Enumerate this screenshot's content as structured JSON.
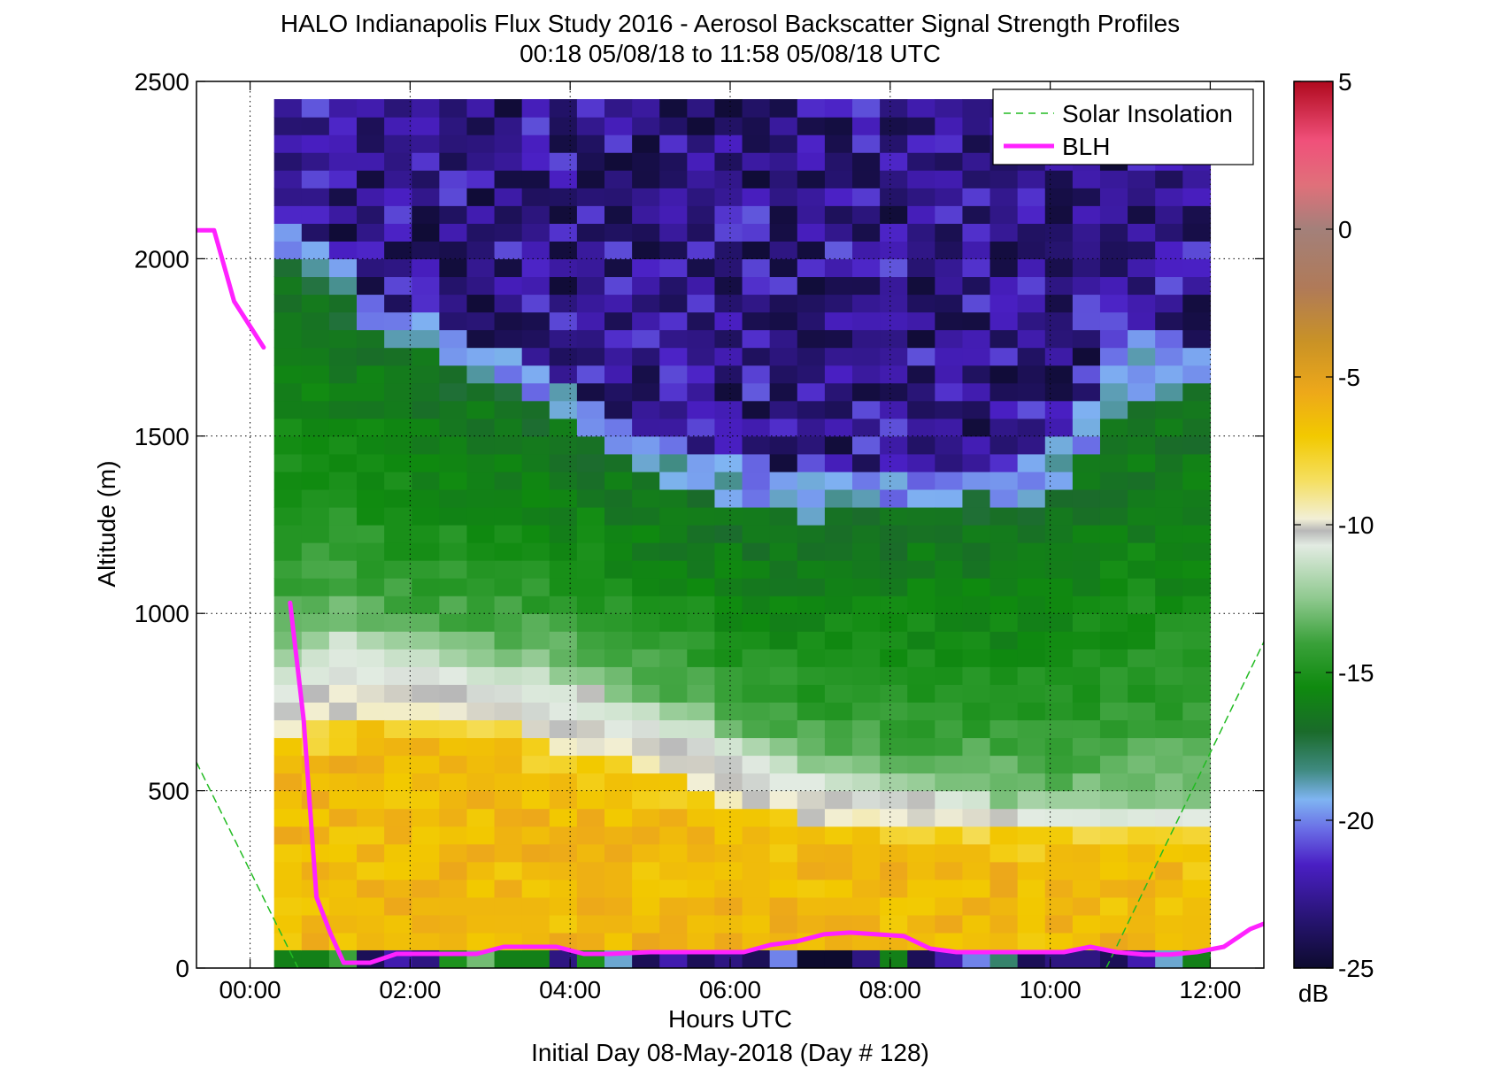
{
  "chart_data": {
    "type": "heatmap",
    "title": "HALO Indianapolis Flux Study 2016 - Aerosol Backscatter Signal Strength Profiles",
    "subtitle": "00:18 05/08/18 to 11:58 05/08/18  UTC",
    "xlabel": "Hours UTC",
    "xlabel2": "Initial Day 08-May-2018 (Day # 128)",
    "ylabel": "Altitude (m)",
    "xlim_hours": [
      -0.67,
      12.67
    ],
    "ylim": [
      0,
      2500
    ],
    "x_ticks": [
      {
        "hour": 0,
        "label": "00:00"
      },
      {
        "hour": 2,
        "label": "02:00"
      },
      {
        "hour": 4,
        "label": "04:00"
      },
      {
        "hour": 6,
        "label": "06:00"
      },
      {
        "hour": 8,
        "label": "08:00"
      },
      {
        "hour": 10,
        "label": "10:00"
      },
      {
        "hour": 12,
        "label": "12:00"
      }
    ],
    "y_ticks": [
      {
        "value": 0,
        "label": "0"
      },
      {
        "value": 500,
        "label": "500"
      },
      {
        "value": 1000,
        "label": "1000"
      },
      {
        "value": 1500,
        "label": "1500"
      },
      {
        "value": 2000,
        "label": "2000"
      },
      {
        "value": 2500,
        "label": "2500"
      }
    ],
    "grid": true,
    "legend_position": "top-right",
    "colorbar": {
      "label": "dB",
      "min": -25,
      "max": 5,
      "ticks": [
        {
          "value": 5,
          "label": "5"
        },
        {
          "value": 0,
          "label": "0"
        },
        {
          "value": -5,
          "label": "-5"
        },
        {
          "value": -10,
          "label": "-10"
        },
        {
          "value": -15,
          "label": "-15"
        },
        {
          "value": -20,
          "label": "-20"
        },
        {
          "value": -25,
          "label": "-25"
        }
      ],
      "stops": [
        {
          "value": -25,
          "color": "#0d0b2e"
        },
        {
          "value": -23.5,
          "color": "#24136b"
        },
        {
          "value": -21.5,
          "color": "#4a1fc4"
        },
        {
          "value": -20.3,
          "color": "#6a6ee6"
        },
        {
          "value": -19.3,
          "color": "#7fb4f2"
        },
        {
          "value": -18.3,
          "color": "#3f8a80"
        },
        {
          "value": -17,
          "color": "#1a6b2a"
        },
        {
          "value": -15.5,
          "color": "#0f8a0f"
        },
        {
          "value": -14,
          "color": "#3aa13a"
        },
        {
          "value": -12.5,
          "color": "#8fc98f"
        },
        {
          "value": -10.7,
          "color": "#e2ebe2"
        },
        {
          "value": -10.2,
          "color": "#b8b8b8"
        },
        {
          "value": -9.8,
          "color": "#f2efd6"
        },
        {
          "value": -8.5,
          "color": "#f5df60"
        },
        {
          "value": -7,
          "color": "#f2c900"
        },
        {
          "value": -5.5,
          "color": "#eda81a"
        },
        {
          "value": -3.8,
          "color": "#c99226"
        },
        {
          "value": -2,
          "color": "#b07a58"
        },
        {
          "value": 0,
          "color": "#a3807a"
        },
        {
          "value": 1.5,
          "color": "#e0707a"
        },
        {
          "value": 3,
          "color": "#f0507a"
        },
        {
          "value": 5,
          "color": "#b00a1e"
        }
      ]
    },
    "heatmap": {
      "t_start_hour": 0.3,
      "t_end_hour": 12,
      "alt_bottom": 50,
      "alt_step": 50,
      "columns": 34,
      "rows": 48,
      "surface_row_db": [
        -16,
        -16,
        -14,
        -24,
        -22,
        -23,
        -15,
        -13,
        -16,
        -16,
        -23,
        -15,
        -19,
        -24,
        -22,
        -24,
        -23,
        -24,
        -20,
        -25,
        -25,
        -23,
        -16,
        -24,
        -22,
        -20,
        -18,
        -24,
        -23,
        -23,
        -24,
        -22,
        -19,
        -16
      ],
      "profile_breakpoints": [
        {
          "hour": 0.3,
          "yellow_top": 640,
          "white_top": 800,
          "green_top": 2000,
          "transition_top": 2100
        },
        {
          "hour": 1.0,
          "yellow_top": 700,
          "white_top": 950,
          "green_top": 1900,
          "transition_top": 2000
        },
        {
          "hour": 2.0,
          "yellow_top": 720,
          "white_top": 880,
          "green_top": 1750,
          "transition_top": 1850
        },
        {
          "hour": 3.0,
          "yellow_top": 700,
          "white_top": 860,
          "green_top": 1650,
          "transition_top": 1750
        },
        {
          "hour": 4.0,
          "yellow_top": 600,
          "white_top": 820,
          "green_top": 1550,
          "transition_top": 1650
        },
        {
          "hour": 5.0,
          "yellow_top": 560,
          "white_top": 740,
          "green_top": 1380,
          "transition_top": 1500
        },
        {
          "hour": 6.0,
          "yellow_top": 470,
          "white_top": 650,
          "green_top": 1300,
          "transition_top": 1460
        },
        {
          "hour": 7.0,
          "yellow_top": 420,
          "white_top": 560,
          "green_top": 1270,
          "transition_top": 1400
        },
        {
          "hour": 8.0,
          "yellow_top": 420,
          "white_top": 520,
          "green_top": 1300,
          "transition_top": 1400
        },
        {
          "hour": 9.0,
          "yellow_top": 400,
          "white_top": 480,
          "green_top": 1330,
          "transition_top": 1400
        },
        {
          "hour": 10.0,
          "yellow_top": 380,
          "white_top": 450,
          "green_top": 1300,
          "transition_top": 1450
        },
        {
          "hour": 11.0,
          "yellow_top": 380,
          "white_top": 450,
          "green_top": 1600,
          "transition_top": 1800
        },
        {
          "hour": 12.0,
          "yellow_top": 380,
          "white_top": 450,
          "green_top": 1650,
          "transition_top": 1750
        }
      ]
    },
    "series": [
      {
        "name": "Solar Insolation",
        "style": "dashed",
        "color": "#22bb22",
        "segments": [
          [
            [
              -0.67,
              580
            ],
            [
              0.6,
              0
            ]
          ],
          [
            [
              10.7,
              0
            ],
            [
              12.67,
              920
            ]
          ]
        ]
      },
      {
        "name": "BLH",
        "style": "solid",
        "color": "#ff22ff",
        "segments": [
          [
            [
              -0.67,
              2080
            ],
            [
              -0.45,
              2080
            ],
            [
              -0.2,
              1880
            ],
            [
              0.17,
              1750
            ]
          ],
          [
            [
              0.5,
              1030
            ],
            [
              0.67,
              700
            ],
            [
              0.83,
              200
            ],
            [
              1.0,
              100
            ],
            [
              1.17,
              15
            ],
            [
              1.5,
              15
            ],
            [
              1.83,
              40
            ],
            [
              2.5,
              40
            ],
            [
              2.83,
              40
            ],
            [
              3.17,
              60
            ],
            [
              3.5,
              60
            ],
            [
              3.83,
              60
            ],
            [
              4.17,
              40
            ],
            [
              4.5,
              40
            ],
            [
              5.0,
              45
            ],
            [
              5.5,
              45
            ],
            [
              6.17,
              45
            ],
            [
              6.5,
              65
            ],
            [
              6.83,
              75
            ],
            [
              7.17,
              95
            ],
            [
              7.5,
              100
            ],
            [
              7.83,
              95
            ],
            [
              8.17,
              90
            ],
            [
              8.5,
              55
            ],
            [
              8.83,
              45
            ],
            [
              9.17,
              45
            ],
            [
              9.5,
              45
            ],
            [
              10.17,
              45
            ],
            [
              10.5,
              60
            ],
            [
              10.83,
              45
            ],
            [
              11.17,
              38
            ],
            [
              11.5,
              38
            ],
            [
              11.83,
              45
            ],
            [
              12.17,
              60
            ],
            [
              12.5,
              110
            ],
            [
              12.67,
              125
            ]
          ]
        ]
      }
    ]
  }
}
